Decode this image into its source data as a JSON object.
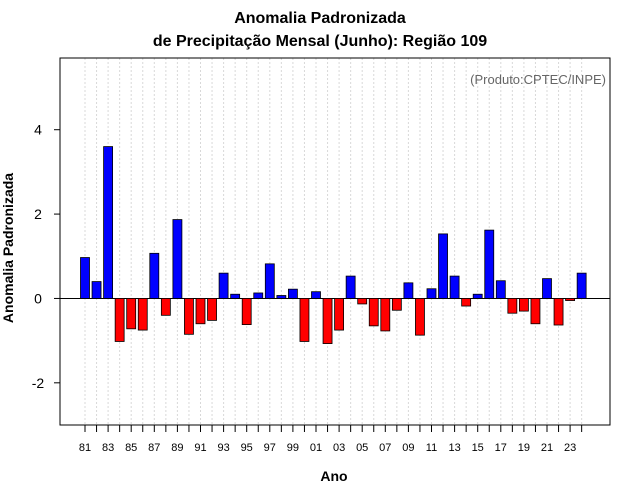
{
  "chart_data": {
    "type": "bar",
    "title_line1": "Anomalia Padronizada",
    "title_line2": "de Precipitação Mensal (Junho): Região 109",
    "credit": "(Produto:CPTEC/INPE)",
    "xlabel": "Ano",
    "ylabel": "Anomalia Padronizada",
    "ylim": [
      -3.0,
      5.7
    ],
    "yticks": [
      -2,
      0,
      2,
      4
    ],
    "x_tick_labels": [
      "81",
      "83",
      "85",
      "87",
      "89",
      "91",
      "93",
      "95",
      "97",
      "99",
      "01",
      "03",
      "05",
      "07",
      "09",
      "11",
      "13",
      "15",
      "17",
      "19",
      "21",
      "23"
    ],
    "categories": [
      "1981",
      "1982",
      "1983",
      "1984",
      "1985",
      "1986",
      "1987",
      "1988",
      "1989",
      "1990",
      "1991",
      "1992",
      "1993",
      "1994",
      "1995",
      "1996",
      "1997",
      "1998",
      "1999",
      "2000",
      "2001",
      "2002",
      "2003",
      "2004",
      "2005",
      "2006",
      "2007",
      "2008",
      "2009",
      "2010",
      "2011",
      "2012",
      "2013",
      "2014",
      "2015",
      "2016",
      "2017",
      "2018",
      "2019",
      "2020",
      "2021",
      "2022",
      "2023",
      "2024"
    ],
    "values": [
      0.97,
      0.4,
      3.6,
      -1.02,
      -0.72,
      -0.75,
      1.07,
      -0.4,
      1.87,
      -0.85,
      -0.6,
      -0.52,
      0.6,
      0.1,
      -0.62,
      0.13,
      0.82,
      0.07,
      0.22,
      -1.02,
      0.16,
      -1.07,
      -0.75,
      0.53,
      -0.13,
      -0.65,
      -0.77,
      -0.28,
      0.37,
      -0.87,
      0.23,
      1.53,
      0.53,
      -0.18,
      0.1,
      1.62,
      0.42,
      -0.35,
      -0.3,
      -0.6,
      0.47,
      -0.63,
      -0.05,
      0.6
    ],
    "colors": {
      "positive": "#0000ff",
      "negative": "#ff0000",
      "grid": "#d8d8d8"
    },
    "grid": "vertical dotted"
  }
}
